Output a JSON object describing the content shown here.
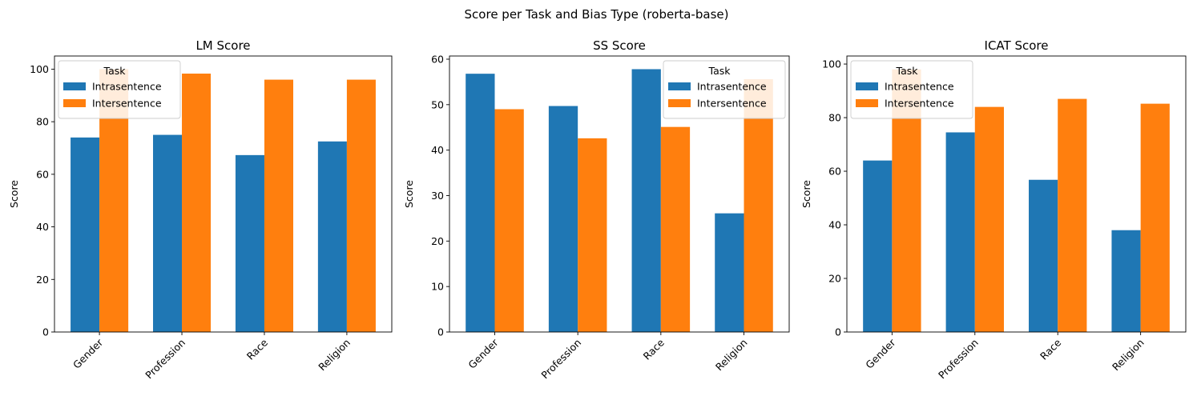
{
  "figure": {
    "suptitle": "Score per Task and Bias Type (roberta-base)"
  },
  "colors": {
    "intrasentence": "#1f77b4",
    "intersentence": "#ff7f0e"
  },
  "chart_data": [
    {
      "type": "bar",
      "title": "LM Score",
      "xlabel": "",
      "ylabel": "Score",
      "categories": [
        "Gender",
        "Profession",
        "Race",
        "Religion"
      ],
      "series": [
        {
          "name": "Intrasentence",
          "values": [
            74.0,
            75.0,
            67.3,
            72.5
          ]
        },
        {
          "name": "Intersentence",
          "values": [
            100.0,
            98.3,
            96.0,
            96.0
          ]
        }
      ],
      "ylim": [
        0,
        105
      ],
      "yticks": [
        0,
        20,
        40,
        60,
        80,
        100
      ],
      "legend": {
        "title": "Task",
        "placement": "upper left"
      }
    },
    {
      "type": "bar",
      "title": "SS Score",
      "xlabel": "",
      "ylabel": "Score",
      "categories": [
        "Gender",
        "Profession",
        "Race",
        "Religion"
      ],
      "series": [
        {
          "name": "Intrasentence",
          "values": [
            56.8,
            49.7,
            57.8,
            26.1
          ]
        },
        {
          "name": "Intersentence",
          "values": [
            49.0,
            42.6,
            45.1,
            55.6
          ]
        }
      ],
      "ylim": [
        0,
        60.7
      ],
      "yticks": [
        0,
        10,
        20,
        30,
        40,
        50,
        60
      ],
      "legend": {
        "title": "Task",
        "placement": "upper right"
      }
    },
    {
      "type": "bar",
      "title": "ICAT Score",
      "xlabel": "",
      "ylabel": "Score",
      "categories": [
        "Gender",
        "Profession",
        "Race",
        "Religion"
      ],
      "series": [
        {
          "name": "Intrasentence",
          "values": [
            64.0,
            74.5,
            56.8,
            38.0
          ]
        },
        {
          "name": "Intersentence",
          "values": [
            98.0,
            84.0,
            87.0,
            85.2
          ]
        }
      ],
      "ylim": [
        0,
        103
      ],
      "yticks": [
        0,
        20,
        40,
        60,
        80,
        100
      ],
      "legend": {
        "title": "Task",
        "placement": "upper left"
      }
    }
  ]
}
